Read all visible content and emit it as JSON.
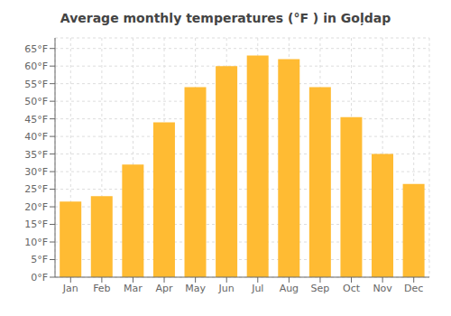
{
  "chart_data": {
    "type": "bar",
    "title": "Average monthly temperatures (°F ) in Goļdap",
    "categories": [
      "Jan",
      "Feb",
      "Mar",
      "Apr",
      "May",
      "Jun",
      "Jul",
      "Aug",
      "Sep",
      "Oct",
      "Nov",
      "Dec"
    ],
    "values": [
      21.5,
      23.0,
      32.0,
      44.0,
      54.0,
      60.0,
      63.0,
      62.0,
      54.0,
      45.5,
      35.0,
      26.5
    ],
    "color": "#FFBB33",
    "ylim": [
      0,
      68
    ],
    "yticks": [
      {
        "value": 0,
        "label": "0°F"
      },
      {
        "value": 5,
        "label": "5°F"
      },
      {
        "value": 10,
        "label": "10°F"
      },
      {
        "value": 15,
        "label": "15°F"
      },
      {
        "value": 20,
        "label": "20°F"
      },
      {
        "value": 25,
        "label": "25°F"
      },
      {
        "value": 30,
        "label": "30°F"
      },
      {
        "value": 35,
        "label": "35°F"
      },
      {
        "value": 40,
        "label": "40°F"
      },
      {
        "value": 45,
        "label": "45°F"
      },
      {
        "value": 50,
        "label": "50°F"
      },
      {
        "value": 55,
        "label": "55°F"
      },
      {
        "value": 60,
        "label": "60°F"
      },
      {
        "value": 65,
        "label": "65°F"
      }
    ],
    "grid": true
  }
}
